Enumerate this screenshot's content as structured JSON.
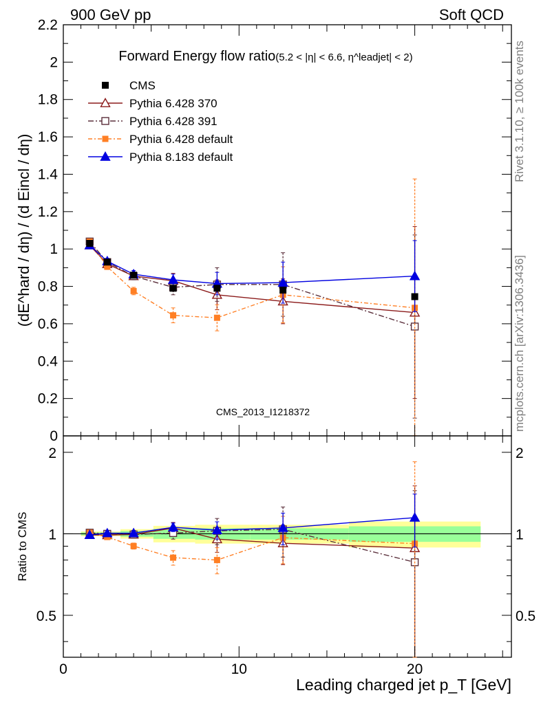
{
  "header": {
    "left": "900 GeV pp",
    "right": "Soft QCD"
  },
  "side": {
    "rivet": "Rivet 3.1.10, ≥ 100k events",
    "mcplots": "mcplots.cern.ch [arXiv:1306.3436]"
  },
  "watermark": "CMS_2013_I1218372",
  "colors": {
    "cms": "#000000",
    "p370": "#8b1a1a",
    "p391": "#5a2e3a",
    "p6def": "#ff7f24",
    "p8def": "#0000e0",
    "band_yellow": "#ffff99",
    "band_green": "#99ff99"
  },
  "chart_data": {
    "type": "line",
    "title": "Forward Energy flow ratio",
    "title_cut": "(5.2 < |η| < 6.6, η^leadjet| < 2)",
    "xlabel": "Leading charged jet p_T [GeV]",
    "ylabel": "(dE^hard / dη) / (d Eincl / dη)",
    "ratio_ylabel": "Ratio to CMS",
    "xlim": [
      0,
      25.5
    ],
    "ylim": [
      0,
      2.2
    ],
    "ratio_ylim": [
      0.35,
      2.3
    ],
    "ratio_log": true,
    "xticks": [
      "0",
      "10",
      "20"
    ],
    "yticks": [
      "0",
      "0.2",
      "0.4",
      "0.6",
      "0.8",
      "1",
      "1.2",
      "1.4",
      "1.6",
      "1.8",
      "2",
      "2.2"
    ],
    "ratio_yticks": [
      "0.5",
      "1",
      "2"
    ],
    "x": [
      1.5,
      2.5,
      4.0,
      6.25,
      8.75,
      12.5,
      20.0
    ],
    "cms": {
      "name": "CMS",
      "values": [
        1.03,
        0.93,
        0.86,
        0.79,
        0.79,
        0.78,
        0.745
      ],
      "band_rel_err": [
        0.02,
        0.02,
        0.04,
        0.07,
        0.08,
        0.08,
        0.11
      ]
    },
    "series": [
      {
        "name": "Pythia 6.428 370",
        "key": "p370",
        "marker": "open-triangle",
        "values": [
          1.02,
          0.92,
          0.855,
          0.83,
          0.755,
          0.72,
          0.66
        ],
        "err": [
          0.01,
          0.015,
          0.02,
          0.04,
          0.08,
          0.12,
          0.46
        ]
      },
      {
        "name": "Pythia 6.428 391",
        "key": "p391",
        "marker": "open-square",
        "values": [
          1.04,
          0.93,
          0.855,
          0.795,
          0.81,
          0.81,
          0.585
        ],
        "err": [
          0.01,
          0.015,
          0.02,
          0.04,
          0.09,
          0.17,
          0.49
        ]
      },
      {
        "name": "Pythia 6.428 default",
        "key": "p6def",
        "marker": "filled-square",
        "values": [
          1.04,
          0.905,
          0.775,
          0.645,
          0.632,
          0.755,
          0.685
        ],
        "err": [
          0.01,
          0.015,
          0.02,
          0.04,
          0.07,
          0.15,
          0.69
        ]
      },
      {
        "name": "Pythia 8.183 default",
        "key": "p8def",
        "marker": "filled-triangle",
        "values": [
          1.02,
          0.935,
          0.865,
          0.835,
          0.815,
          0.82,
          0.855
        ],
        "err": [
          0.01,
          0.015,
          0.02,
          0.03,
          0.06,
          0.11,
          0.19
        ]
      }
    ]
  }
}
